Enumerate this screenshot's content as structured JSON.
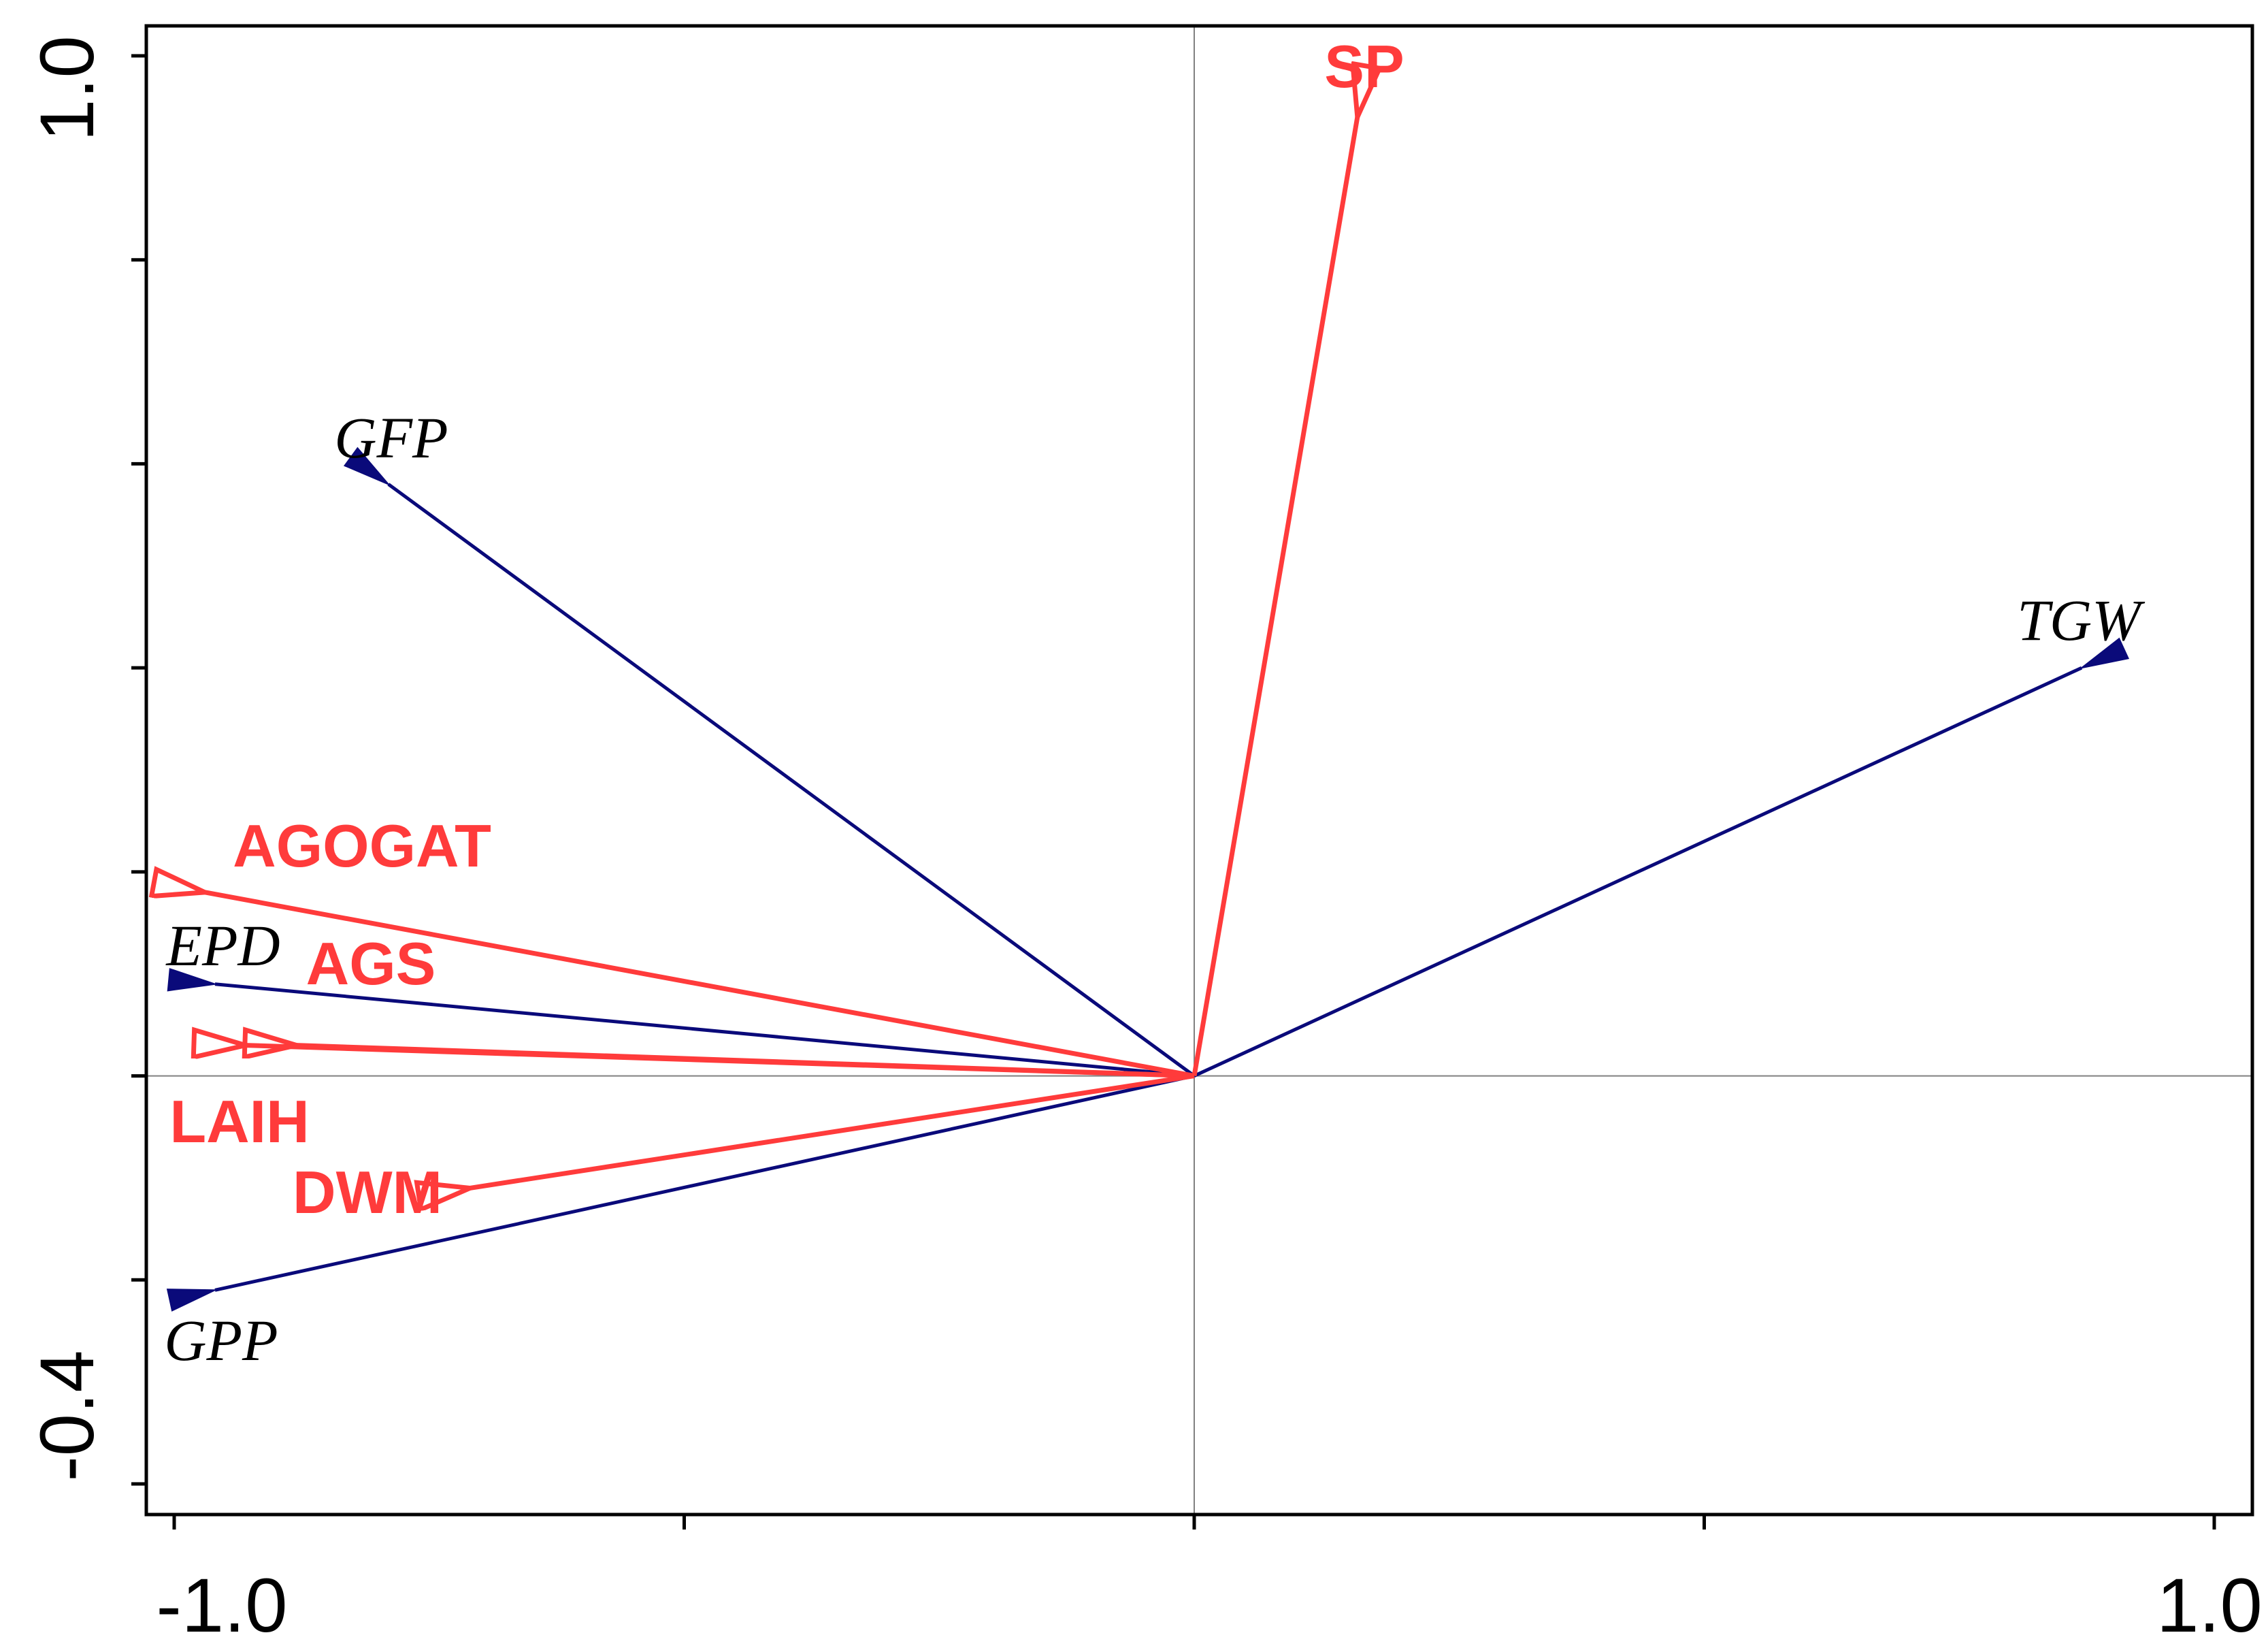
{
  "chart_data": {
    "type": "biplot",
    "xlim": [
      -1.0,
      1.0
    ],
    "ylim": [
      -0.4,
      1.0
    ],
    "x_tick_labels": [
      "-1.0",
      "1.0"
    ],
    "y_tick_labels": [
      "1.0",
      "-0.4"
    ],
    "x_tick_values": [
      -1.0,
      -0.5,
      0.0,
      0.5,
      1.0
    ],
    "y_tick_values": [
      1.0,
      0.8,
      0.6,
      0.4,
      0.2,
      0.0,
      -0.2,
      -0.4
    ],
    "grid": false,
    "zero_lines": true,
    "colors": {
      "response": "#ff3b3b",
      "explanatory": "#0a0a7a",
      "axis": "#000000",
      "zero_line": "#808080"
    },
    "response_vectors": [
      {
        "name": "SP",
        "x": 0.16,
        "y": 0.94
      },
      {
        "name": "AGOGAT",
        "x": -0.97,
        "y": 0.18
      },
      {
        "name": "AGS",
        "x": -0.88,
        "y": 0.03
      },
      {
        "name": "LAIH",
        "x": -0.93,
        "y": 0.03
      },
      {
        "name": "DWM",
        "x": -0.71,
        "y": -0.11
      }
    ],
    "explanatory_vectors": [
      {
        "name": "GFP",
        "x": -0.79,
        "y": 0.58
      },
      {
        "name": "TGW",
        "x": 0.87,
        "y": 0.4
      },
      {
        "name": "EPD",
        "x": -0.96,
        "y": 0.09
      },
      {
        "name": "GPP",
        "x": -0.96,
        "y": -0.21
      }
    ]
  }
}
